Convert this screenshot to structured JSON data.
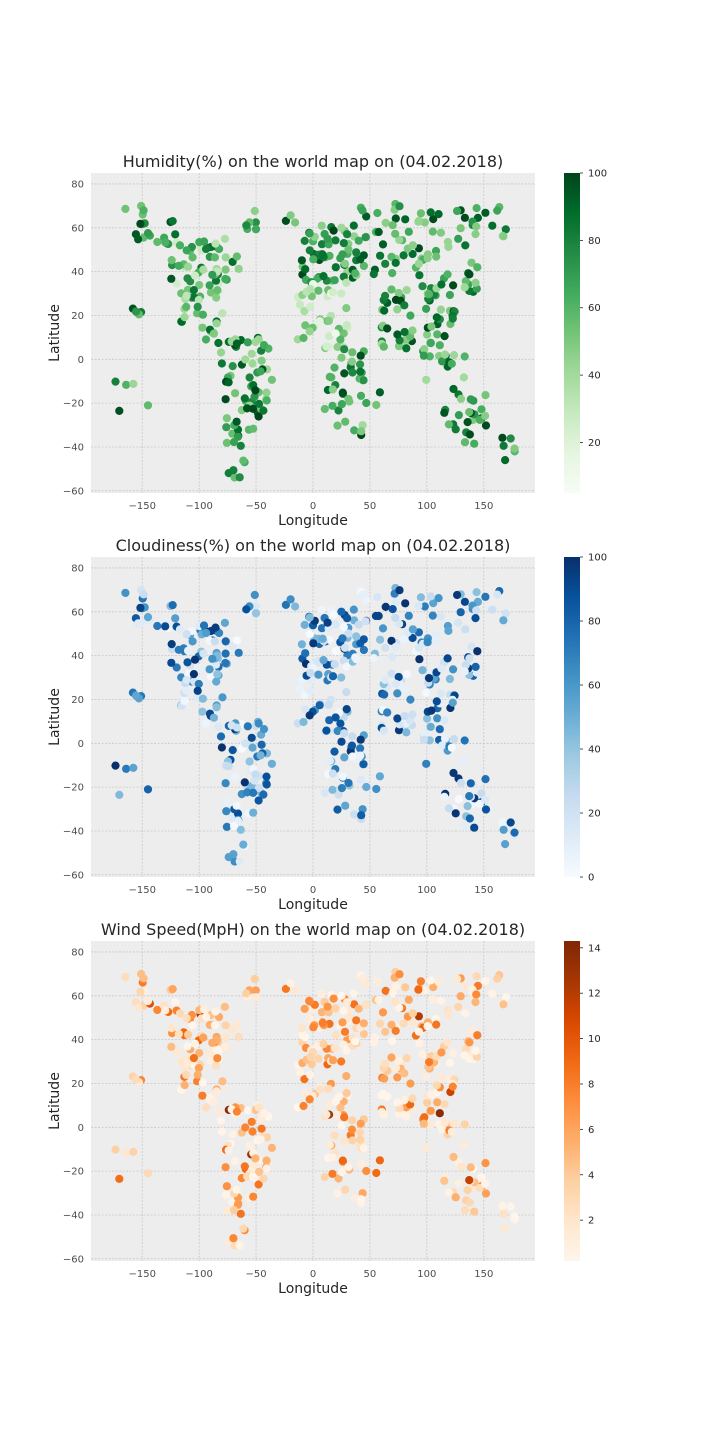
{
  "figure": {
    "background": "#ffffff",
    "panel_background": "#ededed"
  },
  "chart_data": [
    {
      "type": "scatter",
      "title": "Humidity(%) on the world map on (04.02.2018)",
      "xlabel": "Longitude",
      "ylabel": "Latitude",
      "xlim": [
        -195,
        195
      ],
      "ylim": [
        -61,
        85
      ],
      "xticks": [
        -150,
        -100,
        -50,
        0,
        50,
        100,
        150
      ],
      "yticks": [
        -60,
        -40,
        -20,
        0,
        20,
        40,
        60,
        80
      ],
      "grid": true,
      "colormap": "Greens",
      "colorbar": {
        "min": 5,
        "max": 100,
        "ticks": [
          20,
          40,
          60,
          80,
          100
        ]
      },
      "point_count_approx": 550
    },
    {
      "type": "scatter",
      "title": "Cloudiness(%) on the world map on (04.02.2018)",
      "xlabel": "Longitude",
      "ylabel": "Latitude",
      "xlim": [
        -195,
        195
      ],
      "ylim": [
        -61,
        85
      ],
      "xticks": [
        -150,
        -100,
        -50,
        0,
        50,
        100,
        150
      ],
      "yticks": [
        -60,
        -40,
        -20,
        0,
        20,
        40,
        60,
        80
      ],
      "grid": true,
      "colormap": "Blues",
      "colorbar": {
        "min": 0,
        "max": 100,
        "ticks": [
          0,
          20,
          40,
          60,
          80,
          100
        ]
      },
      "point_count_approx": 550
    },
    {
      "type": "scatter",
      "title": "Wind Speed(MpH) on the world map on (04.02.2018)",
      "xlabel": "Longitude",
      "ylabel": "Latitude",
      "xlim": [
        -195,
        195
      ],
      "ylim": [
        -61,
        85
      ],
      "xticks": [
        -150,
        -100,
        -50,
        0,
        50,
        100,
        150
      ],
      "yticks": [
        -60,
        -40,
        -20,
        0,
        20,
        40,
        60,
        80
      ],
      "grid": true,
      "colormap": "Oranges",
      "colorbar": {
        "min": 0.2,
        "max": 14.3,
        "ticks": [
          2,
          4,
          6,
          8,
          10,
          12,
          14
        ]
      },
      "point_count_approx": 550
    }
  ]
}
